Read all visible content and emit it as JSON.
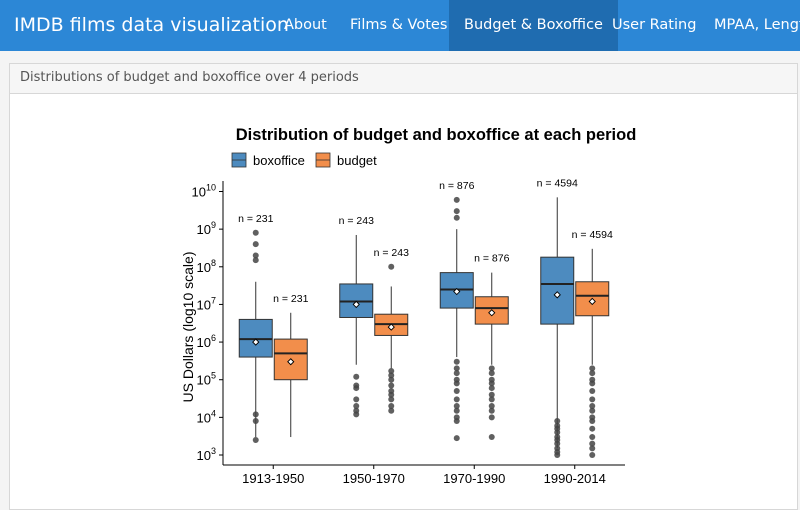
{
  "app": {
    "brand": "IMDB films data visualization",
    "nav": [
      "About",
      "Films & Votes",
      "Budget & Boxoffice",
      "User Rating",
      "MPAA, Length"
    ],
    "active_tab": "Budget & Boxoffice"
  },
  "panel": {
    "title": "Distributions of budget and boxoffice over 4 periods"
  },
  "chart_data": {
    "type": "boxplot",
    "title": "Distribution of budget and boxoffice at each period",
    "xlabel": "",
    "ylabel": "US Dollars (log10 scale)",
    "y_scale": "log10",
    "ylim": [
      1000,
      10000000000
    ],
    "y_ticks": [
      1000,
      10000,
      100000,
      1000000,
      10000000,
      100000000,
      1000000000,
      10000000000
    ],
    "categories": [
      "1913-1950",
      "1950-1970",
      "1970-1990",
      "1990-2014"
    ],
    "legend_position": "top-left",
    "series": [
      {
        "name": "boxoffice",
        "color": "#4d8bbf",
        "boxes": [
          {
            "n_label": "n = 231",
            "whisker_low": 3000,
            "q1": 400000,
            "median": 1200000,
            "q3": 4000000,
            "whisker_high": 40000000,
            "mean": 1000000,
            "outliers": [
              2500,
              8000,
              12000,
              150000000,
              200000000,
              400000000,
              800000000
            ]
          },
          {
            "n_label": "n = 243",
            "whisker_low": 250000,
            "q1": 4500000,
            "median": 12000000,
            "q3": 35000000,
            "whisker_high": 700000000,
            "mean": 10000000,
            "outliers": [
              12000,
              15000,
              20000,
              30000,
              60000,
              70000,
              120000
            ]
          },
          {
            "n_label": "n = 876",
            "whisker_low": 400000,
            "q1": 8000000,
            "median": 25000000,
            "q3": 70000000,
            "whisker_high": 1000000000,
            "mean": 22000000,
            "outliers": [
              2800,
              8000,
              10000,
              15000,
              20000,
              30000,
              50000,
              80000,
              100000,
              150000,
              200000,
              300000,
              2000000000,
              3000000000,
              6000000000
            ]
          },
          {
            "n_label": "n = 4594",
            "whisker_low": 1500,
            "q1": 3000000,
            "median": 35000000,
            "q3": 180000000,
            "whisker_high": 7000000000,
            "mean": 18000000,
            "outliers": [
              1000,
              1200,
              1500,
              2000,
              2500,
              3000,
              4000,
              5000,
              6000,
              8000
            ]
          }
        ]
      },
      {
        "name": "budget",
        "color": "#f28e4b",
        "boxes": [
          {
            "n_label": "n = 231",
            "whisker_low": 3000,
            "q1": 100000,
            "median": 500000,
            "q3": 1200000,
            "whisker_high": 6000000,
            "mean": 300000,
            "outliers": []
          },
          {
            "n_label": "n = 243",
            "whisker_low": 200000,
            "q1": 1500000,
            "median": 3000000,
            "q3": 5500000,
            "whisker_high": 30000000,
            "mean": 2500000,
            "outliers": [
              15000,
              20000,
              30000,
              40000,
              50000,
              70000,
              100000,
              130000,
              170000,
              100000000
            ]
          },
          {
            "n_label": "n = 876",
            "whisker_low": 250000,
            "q1": 3000000,
            "median": 8000000,
            "q3": 16000000,
            "whisker_high": 70000000,
            "mean": 6000000,
            "outliers": [
              3000,
              10000,
              15000,
              20000,
              30000,
              40000,
              60000,
              80000,
              100000,
              150000,
              200000
            ]
          },
          {
            "n_label": "n = 4594",
            "whisker_low": 250000,
            "q1": 5000000,
            "median": 17000000,
            "q3": 40000000,
            "whisker_high": 300000000,
            "mean": 12000000,
            "outliers": [
              1000,
              1500,
              2000,
              3000,
              5000,
              8000,
              10000,
              15000,
              20000,
              30000,
              50000,
              80000,
              100000,
              150000,
              200000
            ]
          }
        ]
      }
    ]
  }
}
